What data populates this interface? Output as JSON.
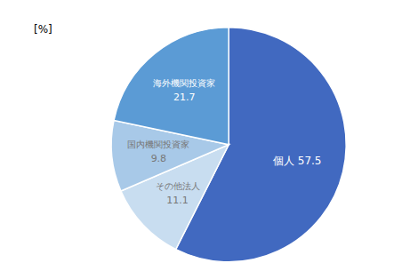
{
  "chart_data": {
    "type": "pie",
    "annotation": "[%]",
    "categories": [
      "個人",
      "その他法人",
      "国内機関投資家",
      "海外機関投資家"
    ],
    "values": [
      57.5,
      11.1,
      9.8,
      21.7
    ],
    "colors": [
      "#4169c0",
      "#c8ddf0",
      "#a8c9e8",
      "#5b9bd5"
    ],
    "data_labels": true
  }
}
